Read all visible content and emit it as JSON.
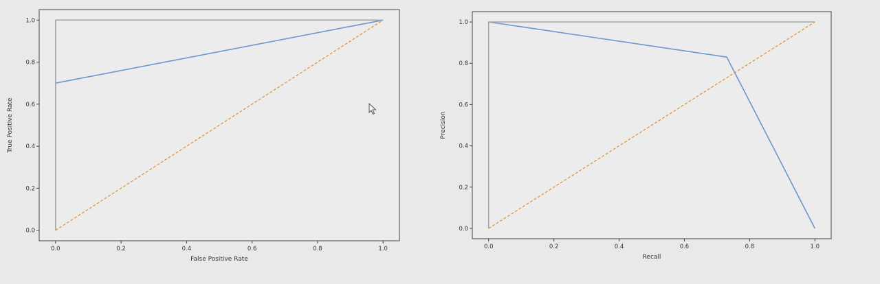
{
  "colors": {
    "background": "#e9e9ea",
    "plot_bg": "#ececed",
    "axes": "#444444",
    "text": "#333333",
    "series_blue": "#6b95cc",
    "series_orange": "#e0943c",
    "series_gray": "#a7a7a7"
  },
  "chart_data": [
    {
      "type": "line",
      "title": "",
      "xlabel": "False Positive Rate",
      "ylabel": "True Positive Rate",
      "xlim": [
        -0.05,
        1.05
      ],
      "ylim": [
        -0.05,
        1.05
      ],
      "xticks": [
        "0.0",
        "0.2",
        "0.4",
        "0.6",
        "0.8",
        "1.0"
      ],
      "yticks": [
        "0.0",
        "0.2",
        "0.4",
        "0.6",
        "0.8",
        "1.0"
      ],
      "grid": false,
      "series": [
        {
          "color": "#6b95cc",
          "style": "solid",
          "x": [
            0.0,
            1.0
          ],
          "y": [
            0.7,
            1.0
          ]
        },
        {
          "color": "#a7a7a7",
          "style": "solid",
          "x": [
            0.0,
            0.0,
            1.0
          ],
          "y": [
            0.0,
            1.0,
            1.0
          ]
        },
        {
          "color": "#e0943c",
          "style": "dashed",
          "x": [
            0.0,
            1.0
          ],
          "y": [
            0.0,
            1.0
          ]
        }
      ]
    },
    {
      "type": "line",
      "title": "",
      "xlabel": "Recall",
      "ylabel": "Precision",
      "xlim": [
        -0.05,
        1.05
      ],
      "ylim": [
        -0.05,
        1.05
      ],
      "xticks": [
        "0.0",
        "0.2",
        "0.4",
        "0.6",
        "0.8",
        "1.0"
      ],
      "yticks": [
        "0.0",
        "0.2",
        "0.4",
        "0.6",
        "0.8",
        "1.0"
      ],
      "grid": false,
      "series": [
        {
          "color": "#6b95cc",
          "style": "solid",
          "x": [
            0.0,
            0.73,
            1.0
          ],
          "y": [
            1.0,
            0.83,
            0.0
          ]
        },
        {
          "color": "#a7a7a7",
          "style": "solid",
          "x": [
            0.0,
            0.0,
            1.0
          ],
          "y": [
            0.0,
            1.0,
            1.0
          ]
        },
        {
          "color": "#e0943c",
          "style": "dashed",
          "x": [
            0.0,
            1.0
          ],
          "y": [
            0.0,
            1.0
          ]
        }
      ]
    }
  ]
}
